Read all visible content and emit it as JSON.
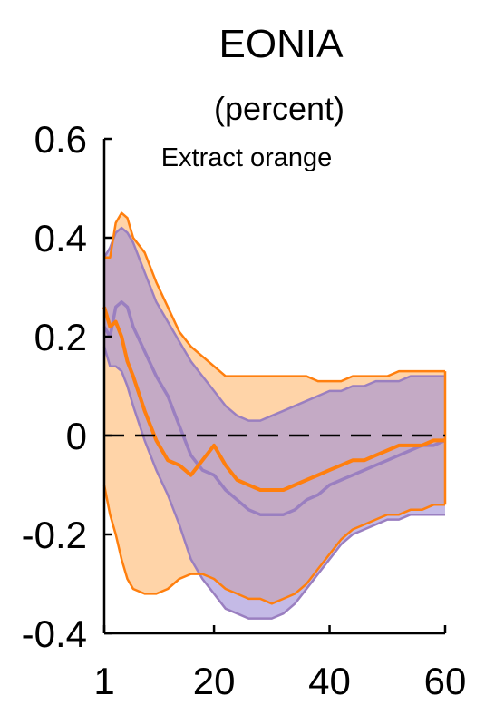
{
  "chart_data": {
    "type": "area",
    "title": "EONIA",
    "subtitle": "(percent)",
    "annotation": "Extract orange",
    "xlabel": "",
    "ylabel": "",
    "xlim": [
      1,
      60
    ],
    "ylim": [
      -0.4,
      0.6
    ],
    "xticks": [
      1,
      20,
      40,
      60
    ],
    "yticks": [
      0.6,
      0.4,
      0.2,
      0,
      -0.2,
      -0.4
    ],
    "ytick_labels": [
      "0.6",
      "0.4",
      "0.2",
      "0",
      "-0.2",
      "-0.4"
    ],
    "zero_line": true,
    "grid": false,
    "colors": {
      "orange_line": "#ff7f0e",
      "orange_band": "#ffcc99",
      "purple_line": "#9a7fc0",
      "purple_band": "#9f8fd6",
      "axis": "#000000",
      "annotation": "#f4925a"
    },
    "x": [
      1,
      2,
      3,
      4,
      5,
      6,
      8,
      10,
      12,
      14,
      16,
      18,
      20,
      22,
      24,
      26,
      28,
      30,
      32,
      34,
      36,
      38,
      40,
      42,
      44,
      46,
      48,
      50,
      52,
      54,
      56,
      58,
      60
    ],
    "series": [
      {
        "key": "orange_median",
        "values": [
          0.26,
          0.22,
          0.23,
          0.2,
          0.15,
          0.12,
          0.05,
          -0.01,
          -0.05,
          -0.06,
          -0.08,
          -0.05,
          -0.02,
          -0.06,
          -0.09,
          -0.1,
          -0.11,
          -0.11,
          -0.11,
          -0.1,
          -0.09,
          -0.08,
          -0.07,
          -0.06,
          -0.05,
          -0.05,
          -0.04,
          -0.03,
          -0.02,
          -0.02,
          -0.02,
          -0.01,
          -0.01
        ]
      },
      {
        "key": "orange_upper",
        "values": [
          0.36,
          0.36,
          0.43,
          0.45,
          0.44,
          0.4,
          0.37,
          0.31,
          0.26,
          0.21,
          0.18,
          0.16,
          0.14,
          0.12,
          0.12,
          0.12,
          0.12,
          0.12,
          0.12,
          0.12,
          0.12,
          0.11,
          0.11,
          0.11,
          0.12,
          0.12,
          0.12,
          0.12,
          0.13,
          0.13,
          0.13,
          0.13,
          0.13
        ]
      },
      {
        "key": "orange_lower",
        "values": [
          -0.1,
          -0.16,
          -0.2,
          -0.25,
          -0.29,
          -0.31,
          -0.32,
          -0.32,
          -0.31,
          -0.29,
          -0.28,
          -0.28,
          -0.29,
          -0.31,
          -0.32,
          -0.33,
          -0.33,
          -0.34,
          -0.33,
          -0.32,
          -0.3,
          -0.27,
          -0.24,
          -0.21,
          -0.19,
          -0.18,
          -0.17,
          -0.16,
          -0.16,
          -0.15,
          -0.15,
          -0.14,
          -0.14
        ]
      },
      {
        "key": "purple_median",
        "values": [
          0.22,
          0.2,
          0.26,
          0.27,
          0.26,
          0.22,
          0.17,
          0.12,
          0.08,
          0.02,
          -0.04,
          -0.07,
          -0.08,
          -0.11,
          -0.13,
          -0.15,
          -0.16,
          -0.16,
          -0.16,
          -0.15,
          -0.13,
          -0.12,
          -0.1,
          -0.09,
          -0.08,
          -0.07,
          -0.06,
          -0.05,
          -0.04,
          -0.03,
          -0.02,
          -0.02,
          -0.01
        ]
      },
      {
        "key": "purple_upper",
        "values": [
          0.36,
          0.38,
          0.41,
          0.42,
          0.41,
          0.39,
          0.33,
          0.27,
          0.23,
          0.19,
          0.15,
          0.12,
          0.09,
          0.06,
          0.04,
          0.03,
          0.03,
          0.04,
          0.05,
          0.06,
          0.07,
          0.08,
          0.09,
          0.09,
          0.1,
          0.1,
          0.11,
          0.11,
          0.11,
          0.12,
          0.12,
          0.12,
          0.12
        ]
      },
      {
        "key": "purple_lower",
        "values": [
          0.18,
          0.14,
          0.14,
          0.13,
          0.1,
          0.06,
          -0.01,
          -0.07,
          -0.12,
          -0.18,
          -0.25,
          -0.29,
          -0.32,
          -0.35,
          -0.36,
          -0.37,
          -0.37,
          -0.37,
          -0.36,
          -0.34,
          -0.31,
          -0.28,
          -0.25,
          -0.22,
          -0.2,
          -0.19,
          -0.18,
          -0.17,
          -0.17,
          -0.16,
          -0.16,
          -0.16,
          -0.16
        ]
      }
    ]
  }
}
